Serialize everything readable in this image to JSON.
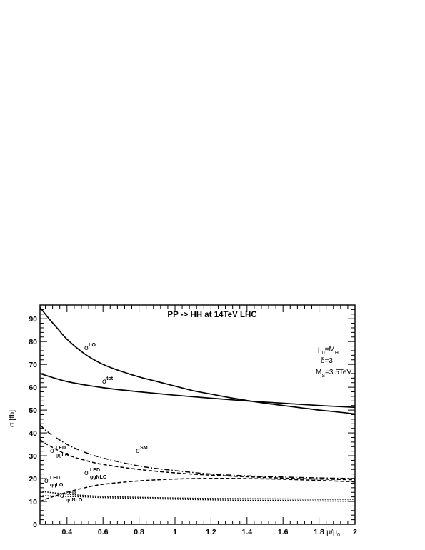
{
  "chart_data": {
    "type": "line",
    "title": "PP -> HH at 14TeV LHC",
    "xlabel": {
      "base": "μ/μ",
      "sub": "0"
    },
    "ylabel": "σ [fb]",
    "xlim": [
      0.25,
      2.0
    ],
    "ylim": [
      0,
      96
    ],
    "x_ticks": [
      "0.4",
      "0.6",
      "0.8",
      "1",
      "1.2",
      "1.4",
      "1.6",
      "1.8",
      "2"
    ],
    "y_ticks": [
      "0",
      "10",
      "20",
      "30",
      "40",
      "50",
      "60",
      "70",
      "80",
      "90"
    ],
    "params": [
      {
        "base": "μ",
        "sub": "0",
        "rest": "=M",
        "sub2": "H"
      },
      {
        "base": "δ=3"
      },
      {
        "base": "M",
        "sub": "S",
        "rest": "=3.5TeV"
      }
    ],
    "series": [
      {
        "label": {
          "base": "σ",
          "sup": "LO"
        },
        "style": "solid",
        "x": [
          0.25,
          0.3,
          0.35,
          0.4,
          0.5,
          0.6,
          0.7,
          0.8,
          0.9,
          1.0,
          1.1,
          1.2,
          1.3,
          1.4,
          1.5,
          1.6,
          1.7,
          1.8,
          1.9,
          2.0
        ],
        "y": [
          95,
          90,
          85.5,
          81,
          74.5,
          70,
          67,
          64.5,
          62.5,
          60.5,
          58.5,
          57,
          55.5,
          54.2,
          53,
          52,
          51,
          50,
          49.2,
          48.3
        ]
      },
      {
        "label": {
          "base": "σ",
          "sup": "tot"
        },
        "style": "solid",
        "x": [
          0.25,
          0.4,
          0.6,
          0.8,
          1.0,
          1.2,
          1.4,
          1.6,
          1.8,
          2.0
        ],
        "y": [
          66,
          62.5,
          59.8,
          58,
          56.5,
          55.2,
          54,
          53,
          52,
          51.2
        ]
      },
      {
        "label": {
          "base": "σ",
          "sup": "SM"
        },
        "style": "dashdot",
        "x": [
          0.25,
          0.3,
          0.4,
          0.5,
          0.6,
          0.8,
          1.0,
          1.2,
          1.4,
          1.6,
          1.8,
          2.0
        ],
        "y": [
          43.5,
          40,
          35,
          31.5,
          29,
          25.5,
          23.5,
          22,
          21.2,
          20.7,
          20.3,
          20
        ]
      },
      {
        "label": {
          "base": "σ",
          "sup": "LED",
          "sub": "ggLO"
        },
        "style": "dashed",
        "x": [
          0.25,
          0.3,
          0.4,
          0.5,
          0.6,
          0.8,
          1.0,
          1.2,
          1.4,
          1.6,
          1.8,
          2.0
        ],
        "y": [
          37,
          34.5,
          30.5,
          28,
          26.2,
          24,
          22.5,
          21.5,
          20.8,
          20.2,
          19.8,
          19.5
        ]
      },
      {
        "label": {
          "base": "σ",
          "sup": "LED",
          "sub": "ggNLO"
        },
        "style": "dashed",
        "x": [
          0.25,
          0.3,
          0.4,
          0.5,
          0.6,
          0.8,
          1.0,
          1.2,
          1.4,
          1.6,
          1.8,
          2.0
        ],
        "y": [
          10,
          11.5,
          14,
          16,
          17.5,
          19,
          19.8,
          20.1,
          20,
          19.7,
          19.2,
          18.6
        ]
      },
      {
        "label": {
          "base": "σ",
          "sup": "LED",
          "sub": "qqLO"
        },
        "style": "dotted",
        "x": [
          0.25,
          0.3,
          0.4,
          0.5,
          0.6,
          0.8,
          1.0,
          1.2,
          1.4,
          1.6,
          1.8,
          2.0
        ],
        "y": [
          14.5,
          14,
          13.2,
          12.6,
          12.2,
          11.8,
          11.5,
          11.3,
          11.2,
          11.1,
          11,
          11
        ]
      },
      {
        "label": {
          "base": "σ",
          "sup": "LED",
          "sub": "qqNLO"
        },
        "style": "dotted",
        "x": [
          0.25,
          0.3,
          0.4,
          0.5,
          0.6,
          0.8,
          1.0,
          1.2,
          1.4,
          1.6,
          1.8,
          2.0
        ],
        "y": [
          12.5,
          12.4,
          12.2,
          12,
          11.7,
          11.3,
          11,
          10.7,
          10.5,
          10.4,
          10.2,
          10.1
        ]
      }
    ],
    "colors": {
      "line": "#000000",
      "background": "#ffffff"
    }
  }
}
